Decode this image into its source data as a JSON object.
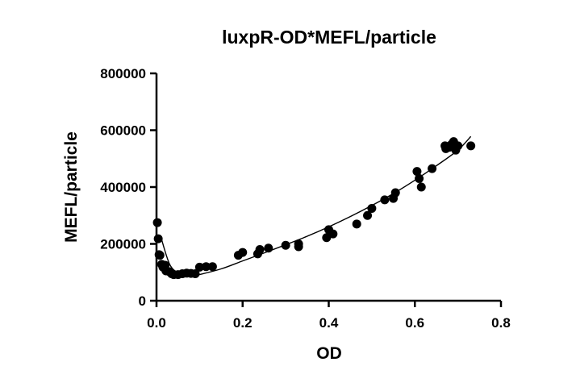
{
  "chart_data": {
    "type": "scatter",
    "title": "luxpR-OD*MEFL/particle",
    "xlabel": "OD",
    "ylabel": "MEFL/particle",
    "xlim": [
      0,
      0.8
    ],
    "ylim": [
      0,
      800000
    ],
    "x_ticks": [
      "0.0",
      "0.2",
      "0.4",
      "0.6",
      "0.8"
    ],
    "y_ticks": [
      "0",
      "200000",
      "400000",
      "600000",
      "800000"
    ],
    "grid": false,
    "legend": "none",
    "colors": {
      "points": "#000000",
      "fit_line": "#000000",
      "axes": "#000000"
    },
    "series": [
      {
        "points": [
          [
            0.002,
            275000
          ],
          [
            0.004,
            218000
          ],
          [
            0.006,
            162000
          ],
          [
            0.008,
            160000
          ],
          [
            0.012,
            128000
          ],
          [
            0.015,
            118000
          ],
          [
            0.02,
            125000
          ],
          [
            0.022,
            105000
          ],
          [
            0.03,
            102000
          ],
          [
            0.035,
            95000
          ],
          [
            0.04,
            92000
          ],
          [
            0.05,
            92000
          ],
          [
            0.06,
            95000
          ],
          [
            0.07,
            97000
          ],
          [
            0.08,
            96000
          ],
          [
            0.09,
            95000
          ],
          [
            0.1,
            118000
          ],
          [
            0.115,
            120000
          ],
          [
            0.13,
            120000
          ],
          [
            0.19,
            160000
          ],
          [
            0.2,
            170000
          ],
          [
            0.235,
            165000
          ],
          [
            0.24,
            180000
          ],
          [
            0.26,
            185000
          ],
          [
            0.3,
            195000
          ],
          [
            0.33,
            200000
          ],
          [
            0.33,
            190000
          ],
          [
            0.395,
            222000
          ],
          [
            0.4,
            250000
          ],
          [
            0.41,
            235000
          ],
          [
            0.465,
            270000
          ],
          [
            0.49,
            300000
          ],
          [
            0.5,
            325000
          ],
          [
            0.53,
            355000
          ],
          [
            0.55,
            360000
          ],
          [
            0.555,
            380000
          ],
          [
            0.605,
            455000
          ],
          [
            0.61,
            430000
          ],
          [
            0.615,
            400000
          ],
          [
            0.64,
            465000
          ],
          [
            0.67,
            545000
          ],
          [
            0.672,
            535000
          ],
          [
            0.68,
            540000
          ],
          [
            0.685,
            550000
          ],
          [
            0.69,
            560000
          ],
          [
            0.695,
            530000
          ],
          [
            0.7,
            545000
          ],
          [
            0.73,
            545000
          ]
        ]
      }
    ],
    "fit_curve": {
      "type": "smooth",
      "x": [
        0.01,
        0.03,
        0.05,
        0.07,
        0.09,
        0.1,
        0.15,
        0.2,
        0.25,
        0.3,
        0.35,
        0.4,
        0.45,
        0.5,
        0.55,
        0.6,
        0.65,
        0.7,
        0.73
      ],
      "y": [
        225000,
        130000,
        98000,
        90000,
        90000,
        92000,
        112000,
        140000,
        168000,
        197000,
        227000,
        260000,
        296000,
        335000,
        377000,
        424000,
        475000,
        530000,
        578000
      ]
    }
  }
}
